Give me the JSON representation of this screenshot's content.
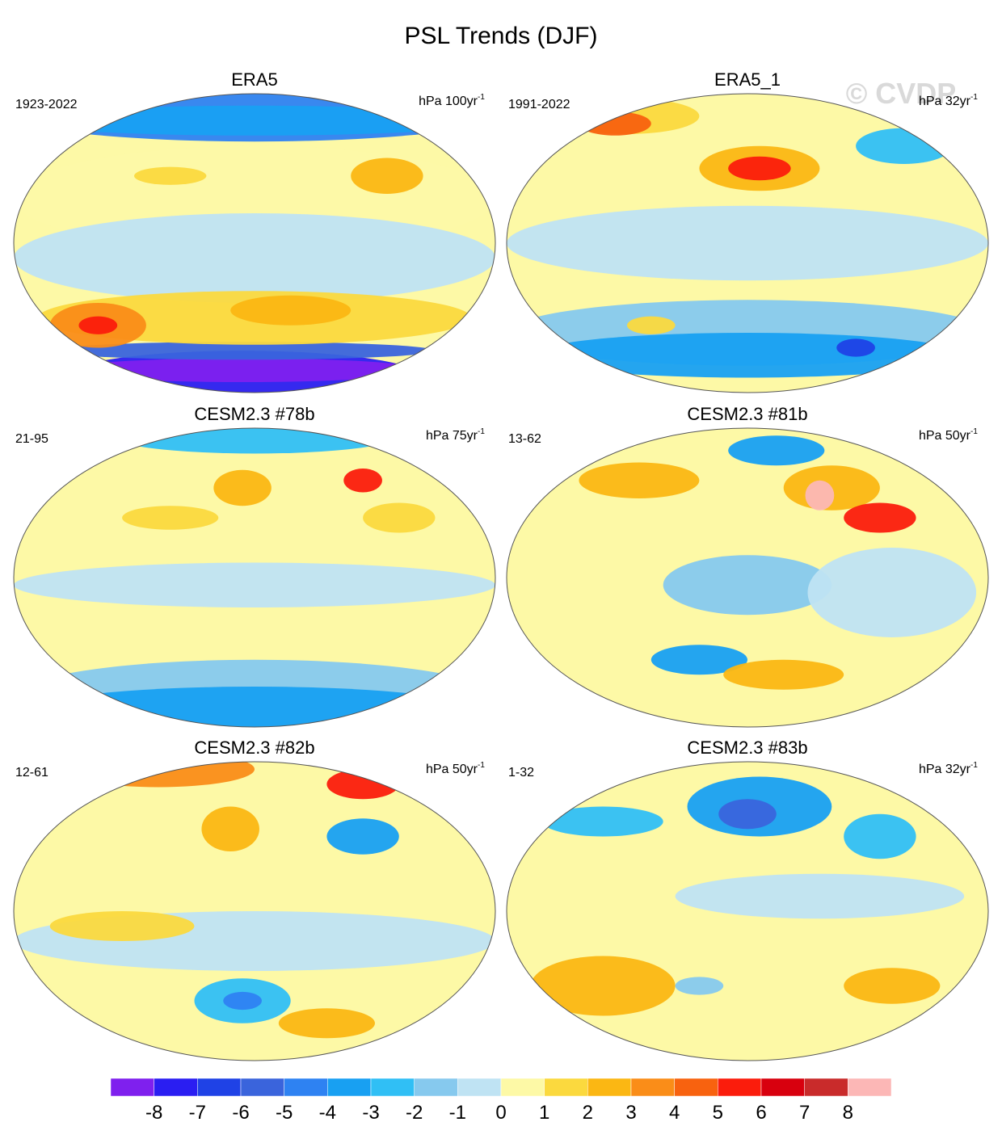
{
  "title": "PSL Trends (DJF)",
  "watermark": "© CVDP",
  "panels": [
    {
      "title": "ERA5",
      "period": "1923-2022",
      "units": "hPa 100yr",
      "units_exp": "-1"
    },
    {
      "title": "ERA5_1",
      "period": "1991-2022",
      "units": "hPa 32yr",
      "units_exp": "-1"
    },
    {
      "title": "CESM2.3 #78b",
      "period": "21-95",
      "units": "hPa 75yr",
      "units_exp": "-1"
    },
    {
      "title": "CESM2.3 #81b",
      "period": "13-62",
      "units": "hPa 50yr",
      "units_exp": "-1"
    },
    {
      "title": "CESM2.3 #82b",
      "period": "12-61",
      "units": "hPa 50yr",
      "units_exp": "-1"
    },
    {
      "title": "CESM2.3 #83b",
      "period": "1-32",
      "units": "hPa 32yr",
      "units_exp": "-1"
    }
  ],
  "colorbar": {
    "levels": [
      -8,
      -7,
      -6,
      -5,
      -4,
      -3,
      -2,
      -1,
      0,
      1,
      2,
      3,
      4,
      5,
      6,
      7,
      8
    ],
    "colors": [
      "#7f20ee",
      "#2a1ef2",
      "#1f42e6",
      "#3a64dc",
      "#2e82f2",
      "#18a0f2",
      "#30bff5",
      "#86c9ee",
      "#bfe3f3",
      "#fdf9a6",
      "#fbd93e",
      "#fbb713",
      "#fa8d18",
      "#f8620f",
      "#fb1c0c",
      "#d8000e",
      "#c92b2b",
      "#fcb7b6"
    ]
  }
}
